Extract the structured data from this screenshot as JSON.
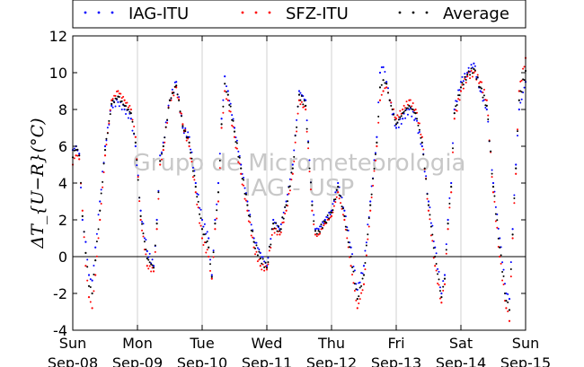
{
  "chart_data": {
    "type": "scatter",
    "title": "",
    "ylabel": "ΔT_{U−R}(°C)",
    "xlabel": "",
    "ylim": [
      -4,
      12
    ],
    "yticks": [
      -4,
      -2,
      0,
      2,
      4,
      6,
      8,
      10,
      12
    ],
    "xlim": [
      0,
      7
    ],
    "xticks": [
      {
        "x": 0,
        "day": "Sun",
        "date": "Sep-08"
      },
      {
        "x": 1,
        "day": "Mon",
        "date": "Sep-09"
      },
      {
        "x": 2,
        "day": "Tue",
        "date": "Sep-10"
      },
      {
        "x": 3,
        "day": "Wed",
        "date": "Sep-11"
      },
      {
        "x": 4,
        "day": "Thu",
        "date": "Sep-12"
      },
      {
        "x": 5,
        "day": "Fri",
        "date": "Sep-13"
      },
      {
        "x": 6,
        "day": "Sat",
        "date": "Sep-14"
      },
      {
        "x": 7,
        "day": "Sun",
        "date": "Sep-15"
      }
    ],
    "grid": "vertical at day ticks",
    "zero_line": true,
    "legend_position": "top, above plot",
    "watermark_lines": [
      "Grupo de Micrometeorologia",
      "IAG - USP"
    ],
    "series": [
      {
        "name": "IAG-ITU",
        "color": "#0000ff",
        "x": [
          0,
          0.05,
          0.1,
          0.15,
          0.2,
          0.25,
          0.3,
          0.35,
          0.42,
          0.5,
          0.6,
          0.7,
          0.8,
          0.9,
          0.97,
          1.05,
          1.15,
          1.25,
          1.3,
          1.35,
          1.4,
          1.5,
          1.6,
          1.7,
          1.8,
          1.9,
          2.0,
          2.1,
          2.15,
          2.2,
          2.25,
          2.3,
          2.35,
          2.4,
          2.5,
          2.6,
          2.7,
          2.8,
          2.9,
          3.0,
          3.1,
          3.2,
          3.3,
          3.4,
          3.5,
          3.6,
          3.7,
          3.75,
          3.8,
          3.9,
          4.0,
          4.1,
          4.2,
          4.3,
          4.4,
          4.5,
          4.6,
          4.7,
          4.75,
          4.8,
          4.85,
          4.9,
          5.0,
          5.1,
          5.2,
          5.3,
          5.4,
          5.5,
          5.6,
          5.7,
          5.75,
          5.8,
          5.85,
          5.9,
          6.0,
          6.1,
          6.2,
          6.3,
          6.4,
          6.5,
          6.6,
          6.7,
          6.75,
          6.8,
          6.85,
          6.9,
          7.0
        ],
        "y": [
          5.8,
          6.0,
          5.6,
          2.0,
          0.8,
          -1.0,
          -1.3,
          0.5,
          3.0,
          6.0,
          8.2,
          8.4,
          8.0,
          7.5,
          6.0,
          2.5,
          0.3,
          -0.5,
          2.0,
          5.5,
          6.2,
          8.5,
          9.5,
          7.0,
          6.5,
          4.0,
          2.0,
          1.0,
          -1.0,
          2.0,
          4.0,
          7.5,
          9.8,
          9.0,
          7.0,
          5.0,
          3.0,
          1.0,
          0.2,
          -0.5,
          2.0,
          1.5,
          3.0,
          5.0,
          9.0,
          8.5,
          3.0,
          1.5,
          1.5,
          2.0,
          2.5,
          4.0,
          2.5,
          0.5,
          -1.8,
          -0.5,
          3.0,
          6.5,
          10.0,
          10.3,
          9.5,
          8.5,
          7.0,
          7.5,
          8.0,
          7.5,
          6.0,
          3.0,
          0.5,
          -2.0,
          -1.0,
          2.0,
          4.0,
          8.0,
          9.5,
          10.0,
          10.5,
          9.0,
          8.0,
          4.0,
          1.0,
          -2.0,
          -2.3,
          1.5,
          5.0,
          8.0,
          9.5
        ]
      },
      {
        "name": "SFZ-ITU",
        "color": "#ff0000",
        "x": [
          0,
          0.05,
          0.1,
          0.15,
          0.2,
          0.25,
          0.3,
          0.35,
          0.42,
          0.5,
          0.6,
          0.7,
          0.8,
          0.9,
          0.97,
          1.05,
          1.15,
          1.25,
          1.3,
          1.35,
          1.4,
          1.5,
          1.6,
          1.7,
          1.8,
          1.9,
          2.0,
          2.1,
          2.15,
          2.2,
          2.25,
          2.3,
          2.35,
          2.4,
          2.5,
          2.6,
          2.7,
          2.8,
          2.9,
          3.0,
          3.1,
          3.2,
          3.3,
          3.4,
          3.5,
          3.6,
          3.7,
          3.75,
          3.8,
          3.9,
          4.0,
          4.1,
          4.2,
          4.3,
          4.4,
          4.5,
          4.6,
          4.7,
          4.75,
          4.8,
          4.85,
          4.9,
          5.0,
          5.1,
          5.2,
          5.3,
          5.4,
          5.5,
          5.6,
          5.7,
          5.75,
          5.8,
          5.85,
          5.9,
          6.0,
          6.1,
          6.2,
          6.3,
          6.4,
          6.5,
          6.6,
          6.7,
          6.75,
          6.8,
          6.85,
          6.9,
          7.0
        ],
        "y": [
          5.0,
          5.5,
          5.3,
          2.5,
          -0.5,
          -2.2,
          -2.8,
          -1.0,
          2.0,
          5.5,
          8.5,
          9.0,
          8.5,
          8.0,
          6.5,
          2.0,
          -0.5,
          -0.8,
          1.5,
          5.0,
          5.8,
          8.5,
          9.2,
          7.2,
          6.0,
          3.5,
          1.0,
          0.0,
          -1.2,
          1.5,
          3.0,
          7.0,
          9.0,
          8.5,
          6.5,
          4.5,
          2.5,
          0.5,
          -0.5,
          -0.7,
          1.5,
          1.2,
          2.5,
          4.5,
          8.5,
          8.0,
          2.5,
          1.2,
          1.2,
          1.8,
          2.2,
          3.5,
          2.0,
          -0.5,
          -2.8,
          -1.5,
          2.5,
          6.0,
          8.5,
          9.0,
          9.2,
          8.5,
          7.5,
          8.0,
          8.5,
          8.0,
          6.5,
          2.5,
          -0.5,
          -2.5,
          -1.5,
          1.5,
          3.5,
          7.5,
          9.0,
          9.8,
          10.0,
          9.5,
          8.5,
          3.5,
          0.0,
          -2.8,
          -3.5,
          1.0,
          4.5,
          9.0,
          10.8
        ]
      },
      {
        "name": "Average",
        "color": "#000000",
        "x": [
          0,
          0.05,
          0.1,
          0.15,
          0.2,
          0.25,
          0.3,
          0.35,
          0.42,
          0.5,
          0.6,
          0.7,
          0.8,
          0.9,
          0.97,
          1.05,
          1.15,
          1.25,
          1.3,
          1.35,
          1.4,
          1.5,
          1.6,
          1.7,
          1.8,
          1.9,
          2.0,
          2.1,
          2.15,
          2.2,
          2.25,
          2.3,
          2.35,
          2.4,
          2.5,
          2.6,
          2.7,
          2.8,
          2.9,
          3.0,
          3.1,
          3.2,
          3.3,
          3.4,
          3.5,
          3.6,
          3.7,
          3.75,
          3.8,
          3.9,
          4.0,
          4.1,
          4.2,
          4.3,
          4.4,
          4.5,
          4.6,
          4.7,
          4.75,
          4.8,
          4.85,
          4.9,
          5.0,
          5.1,
          5.2,
          5.3,
          5.4,
          5.5,
          5.6,
          5.7,
          5.75,
          5.8,
          5.85,
          5.9,
          6.0,
          6.1,
          6.2,
          6.3,
          6.4,
          6.5,
          6.6,
          6.7,
          6.75,
          6.8,
          6.85,
          6.9,
          7.0
        ],
        "y": [
          5.4,
          5.8,
          5.5,
          2.2,
          0.2,
          -1.6,
          -2.0,
          -0.2,
          2.5,
          5.8,
          8.3,
          8.7,
          8.2,
          7.8,
          6.2,
          2.2,
          -0.1,
          -0.6,
          1.8,
          5.2,
          6.0,
          8.5,
          9.3,
          7.1,
          6.2,
          3.8,
          1.5,
          0.5,
          -1.1,
          1.8,
          3.5,
          7.2,
          9.4,
          8.8,
          6.8,
          4.8,
          2.8,
          0.8,
          -0.1,
          -0.6,
          1.8,
          1.4,
          2.8,
          4.8,
          8.8,
          8.2,
          2.8,
          1.4,
          1.4,
          1.9,
          2.4,
          3.8,
          2.2,
          0.0,
          -2.3,
          -1.0,
          2.8,
          6.2,
          9.2,
          9.6,
          9.4,
          8.5,
          7.2,
          7.8,
          8.2,
          7.8,
          6.2,
          2.8,
          0.0,
          -2.2,
          -1.2,
          1.8,
          3.8,
          7.8,
          9.2,
          9.9,
          10.2,
          9.2,
          8.2,
          3.8,
          0.5,
          -2.4,
          -2.9,
          1.2,
          4.8,
          8.5,
          10.1
        ]
      }
    ]
  }
}
